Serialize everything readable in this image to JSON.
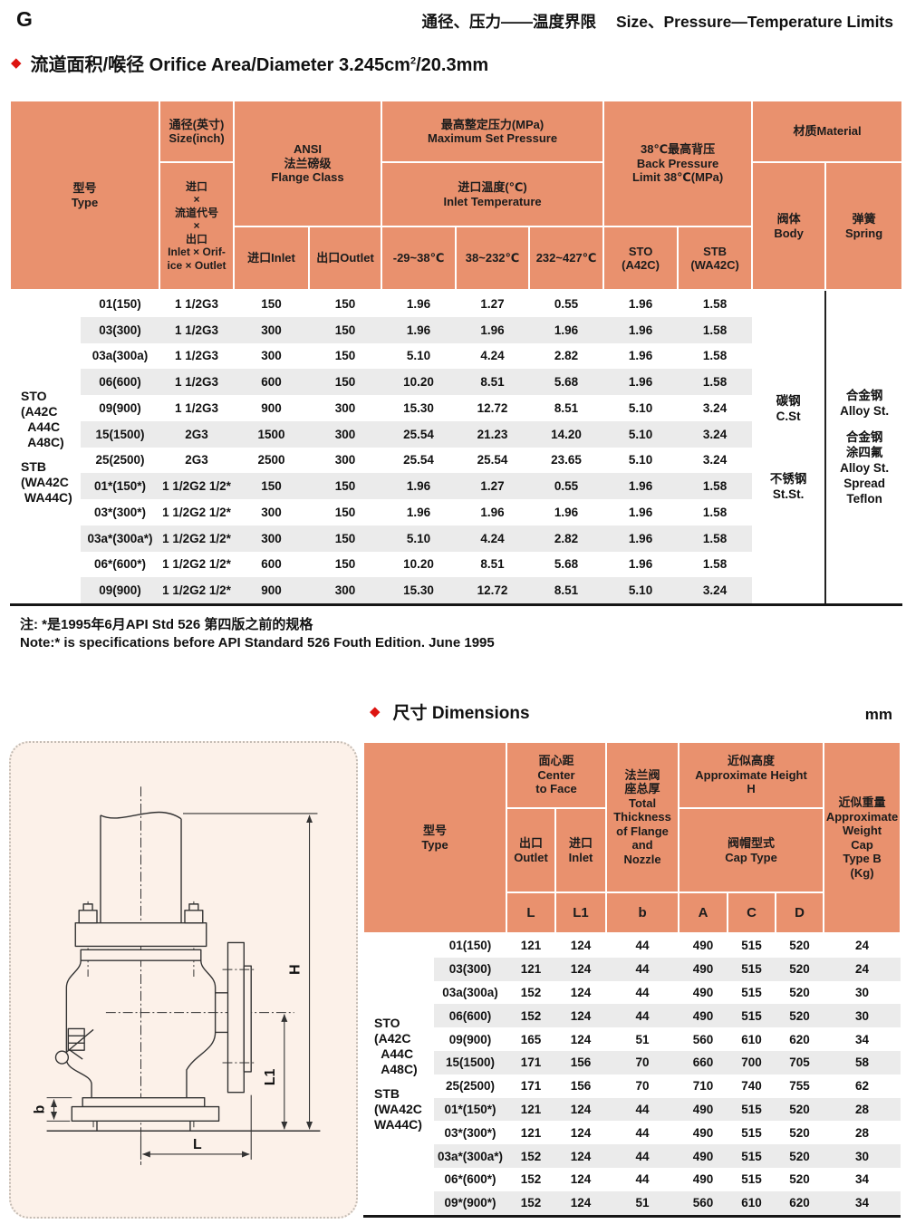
{
  "colors": {
    "table_header_bg": "#e9916e",
    "row_stripe": "#ebebeb",
    "bullet_red": "#dd1410",
    "diagram_panel_bg": "#fcf1e9",
    "diagram_panel_border": "#c4bcb4"
  },
  "page": {
    "corner_label": "G",
    "header_title_zh": "通径、压力——温度界限",
    "header_title_en": "Size、Pressure—Temperature Limits"
  },
  "section1": {
    "title_main": "流道面积/喉径 Orifice Area/Diameter 3.245cm",
    "title_sup": "2",
    "title_tail": "/20.3mm"
  },
  "pressure_table": {
    "header": {
      "type": "型号\nType",
      "size_top": "通径(英寸)\nSize(inch)",
      "size_bottom": "进口\n×\n流道代号\n×\n出口\nInlet × Orif-\nice × Outlet",
      "flange_class": "ANSI\n法兰磅级\nFlange Class",
      "flange_inlet": "进口Inlet",
      "flange_outlet": "出口Outlet",
      "max_set_pressure": "最高整定压力(MPa)\nMaximum Set Pressure",
      "inlet_temperature": "进口温度(℃)\nInlet Temperature",
      "temp_ranges": [
        "-29~38℃",
        "38~232℃",
        "232~427℃"
      ],
      "back_pressure": "38℃最高背压\nBack Pressure\nLimit 38℃(MPa)",
      "sto_col": "STO\n(A42C)",
      "stb_col": "STB\n(WA42C)",
      "material": "材质Material",
      "body_col": "阀体\nBody",
      "spring_col": "弹簧\nSpring"
    },
    "group_labels": [
      "STO\n(A42C\n  A44C\n  A48C)",
      "STB\n(WA42C\n WA44C)"
    ],
    "rows": [
      [
        "01(150)",
        "1 1/2G3",
        "150",
        "150",
        "1.96",
        "1.27",
        "0.55",
        "1.96",
        "1.58"
      ],
      [
        "03(300)",
        "1 1/2G3",
        "300",
        "150",
        "1.96",
        "1.96",
        "1.96",
        "1.96",
        "1.58"
      ],
      [
        "03a(300a)",
        "1 1/2G3",
        "300",
        "150",
        "5.10",
        "4.24",
        "2.82",
        "1.96",
        "1.58"
      ],
      [
        "06(600)",
        "1 1/2G3",
        "600",
        "150",
        "10.20",
        "8.51",
        "5.68",
        "1.96",
        "1.58"
      ],
      [
        "09(900)",
        "1 1/2G3",
        "900",
        "300",
        "15.30",
        "12.72",
        "8.51",
        "5.10",
        "3.24"
      ],
      [
        "15(1500)",
        "2G3",
        "1500",
        "300",
        "25.54",
        "21.23",
        "14.20",
        "5.10",
        "3.24"
      ],
      [
        "25(2500)",
        "2G3",
        "2500",
        "300",
        "25.54",
        "25.54",
        "23.65",
        "5.10",
        "3.24"
      ],
      [
        "01*(150*)",
        "1 1/2G2 1/2*",
        "150",
        "150",
        "1.96",
        "1.27",
        "0.55",
        "1.96",
        "1.58"
      ],
      [
        "03*(300*)",
        "1 1/2G2 1/2*",
        "300",
        "150",
        "1.96",
        "1.96",
        "1.96",
        "1.96",
        "1.58"
      ],
      [
        "03a*(300a*)",
        "1 1/2G2 1/2*",
        "300",
        "150",
        "5.10",
        "4.24",
        "2.82",
        "1.96",
        "1.58"
      ],
      [
        "06*(600*)",
        "1 1/2G2 1/2*",
        "600",
        "150",
        "10.20",
        "8.51",
        "5.68",
        "1.96",
        "1.58"
      ],
      [
        "09(900)",
        "1 1/2G2 1/2*",
        "900",
        "300",
        "15.30",
        "12.72",
        "8.51",
        "5.10",
        "3.24"
      ]
    ],
    "body_materials": [
      "碳钢\nC.St",
      "不锈钢\nSt.St."
    ],
    "spring_materials": [
      "合金钢\nAlloy St.",
      "合金钢\n涂四氟\nAlloy St.\nSpread\nTeflon"
    ]
  },
  "notes": [
    "注: *是1995年6月API Std 526 第四版之前的规格",
    "Note:* is specifications before API Standard 526 Fouth Edition. June 1995"
  ],
  "section2": {
    "title": "尺寸 Dimensions",
    "unit": "mm"
  },
  "dimensions_table": {
    "header": {
      "type": "型号\nType",
      "center_to_face": "面心距\nCenter\nto Face",
      "outlet": "出口\nOutlet",
      "inlet": "进口\nInlet",
      "thickness": "法兰阀\n座总厚\nTotal\nThickness\nof Flange\nand\nNozzle",
      "approx_height": "近似高度\nApproximate Height\nH",
      "cap_type": "阀帽型式\nCap Type",
      "weight": "近似重量\nApproximate\nWeight\nCap\nType B\n(Kg)",
      "letters": [
        "L",
        "L1",
        "b",
        "A",
        "C",
        "D"
      ]
    },
    "group_labels": [
      "STO\n(A42C\n  A44C\n  A48C)",
      "STB\n(WA42C\nWA44C)"
    ],
    "rows": [
      [
        "01(150)",
        "121",
        "124",
        "44",
        "490",
        "515",
        "520",
        "24"
      ],
      [
        "03(300)",
        "121",
        "124",
        "44",
        "490",
        "515",
        "520",
        "24"
      ],
      [
        "03a(300a)",
        "152",
        "124",
        "44",
        "490",
        "515",
        "520",
        "30"
      ],
      [
        "06(600)",
        "152",
        "124",
        "44",
        "490",
        "515",
        "520",
        "30"
      ],
      [
        "09(900)",
        "165",
        "124",
        "51",
        "560",
        "610",
        "620",
        "34"
      ],
      [
        "15(1500)",
        "171",
        "156",
        "70",
        "660",
        "700",
        "705",
        "58"
      ],
      [
        "25(2500)",
        "171",
        "156",
        "70",
        "710",
        "740",
        "755",
        "62"
      ],
      [
        "01*(150*)",
        "121",
        "124",
        "44",
        "490",
        "515",
        "520",
        "28"
      ],
      [
        "03*(300*)",
        "121",
        "124",
        "44",
        "490",
        "515",
        "520",
        "28"
      ],
      [
        "03a*(300a*)",
        "152",
        "124",
        "44",
        "490",
        "515",
        "520",
        "30"
      ],
      [
        "06*(600*)",
        "152",
        "124",
        "44",
        "490",
        "515",
        "520",
        "34"
      ],
      [
        "09*(900*)",
        "152",
        "124",
        "51",
        "560",
        "610",
        "620",
        "34"
      ]
    ]
  },
  "diagram": {
    "dim_h": "H",
    "dim_l1": "L1",
    "dim_l": "L",
    "dim_b": "b"
  }
}
